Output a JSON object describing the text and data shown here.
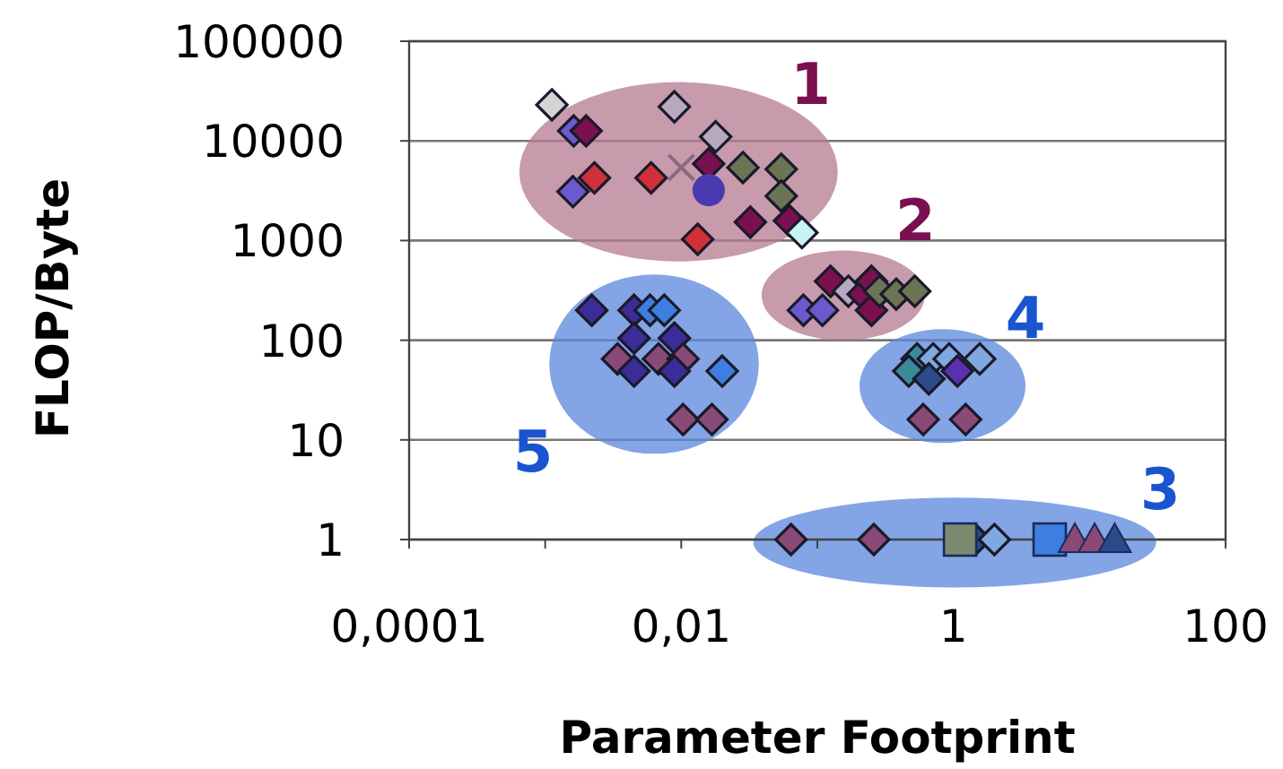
{
  "chart_data": {
    "type": "scatter",
    "xlabel": "Parameter Footprint",
    "ylabel": "FLOP/Byte",
    "log": "xy",
    "grid": "y",
    "xlim": [
      0.0001,
      100
    ],
    "xticks": [
      {
        "value": 0.0001,
        "label": "0,0001"
      },
      {
        "value": 0.001,
        "label": null
      },
      {
        "value": 0.01,
        "label": "0,01"
      },
      {
        "value": 0.1,
        "label": null
      },
      1,
      {
        "value": 10,
        "label": null
      },
      100
    ],
    "ylim": [
      1,
      100000
    ],
    "yticks": [
      1,
      10,
      100,
      1000,
      10000,
      100000
    ],
    "annotations": [
      "1",
      "2",
      "3",
      "4",
      "5"
    ],
    "series": [
      {
        "marker": "diamond",
        "x": [
          0.00112,
          0.00162,
          0.002,
          0.0023,
          0.0016,
          0.006,
          0.0089,
          0.0159,
          0.0179,
          0.0284,
          0.0543,
          0.0543,
          0.0322,
          0.0132,
          0.0624,
          0.0771,
          0.079,
          0.109,
          0.125,
          0.169,
          0.217,
          0.25,
          0.25,
          0.287,
          0.38,
          0.52,
          0.0022,
          0.0045,
          0.0059,
          0.0075,
          0.0045,
          0.0089,
          0.0034,
          0.0068,
          0.0103,
          0.0045,
          0.0089,
          0.02,
          0.0103,
          0.0168,
          0.54,
          0.71,
          0.93,
          1.56,
          0.47,
          0.66,
          1.07,
          0.6,
          1.23,
          0.064,
          0.26,
          1.45,
          2.0
        ],
        "values": [
          23000,
          12600,
          12600,
          4260,
          3100,
          4260,
          22000,
          5900,
          11000,
          5400,
          5200,
          2800,
          1530,
          1030,
          1580,
          1200,
          200,
          200,
          390,
          310,
          290,
          390,
          200,
          310,
          290,
          310,
          200,
          200,
          200,
          200,
          105,
          105,
          65,
          65,
          65,
          49,
          49,
          49,
          16,
          16,
          65,
          65,
          65,
          65,
          49,
          41,
          49,
          16,
          16,
          1,
          1,
          1,
          1
        ],
        "colors": [
          "#d4d4d4",
          "#6a5acd",
          "#7a1050",
          "#d0303a",
          "#6a5acd",
          "#d0303a",
          "#b8a8c0",
          "#7a1050",
          "#b8a8c0",
          "#6b7553",
          "#6b7553",
          "#6b7553",
          "#7a1050",
          "#d0303a",
          "#7a1050",
          "#c8f4f4",
          "#6a5acd",
          "#6a5acd",
          "#7a1050",
          "#b8a8c0",
          "#7a1050",
          "#7a1050",
          "#7a1050",
          "#6b7553",
          "#6b7553",
          "#6b7553",
          "#3a2d9a",
          "#3a2d9a",
          "#3d7ee0",
          "#3d7ee0",
          "#3a2d9a",
          "#3a2d9a",
          "#8a4a78",
          "#8a4a78",
          "#8a4a78",
          "#3a2d9a",
          "#3a2d9a",
          "#3d7ee0",
          "#8a4a78",
          "#8a4a78",
          "#3a8a9a",
          "#80a8e0",
          "#80a8e0",
          "#80a8e0",
          "#3a8a9a",
          "#2d4a8a",
          "#5a2fb0",
          "#8a4a78",
          "#8a4a78",
          "#8a4a78",
          "#8a4a78",
          "#2d4a8a",
          "#80a8e0"
        ]
      },
      {
        "marker": "square",
        "x": [
          1.12,
          5.1
        ],
        "values": [
          1,
          1
        ],
        "colors": [
          "#7d8a70",
          "#3d7ee0"
        ]
      },
      {
        "marker": "triangle",
        "x": [
          7.8,
          10.9,
          15.3
        ],
        "values": [
          1,
          1,
          1
        ],
        "colors": [
          "#8a4a78",
          "#8a4a78",
          "#2d4a8a"
        ]
      },
      {
        "marker": "circle",
        "x": [
          0.0159
        ],
        "values": [
          3200
        ],
        "color": "#4a3ab0"
      },
      {
        "marker": "cross",
        "x": [
          0.01
        ],
        "values": [
          5400
        ],
        "color": "#8a6a80"
      }
    ]
  }
}
